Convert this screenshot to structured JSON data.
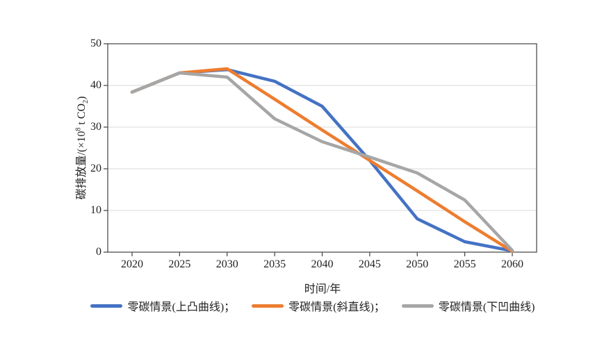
{
  "page": {
    "background": "#ffffff"
  },
  "chart_data": {
    "type": "line",
    "title": "",
    "x": [
      2020,
      2025,
      2030,
      2035,
      2040,
      2045,
      2050,
      2055,
      2060
    ],
    "xlabel": "时间/年",
    "ylabel": "碳排放量/(×10⁸ t CO₂)",
    "ylabel_parts": {
      "pre": "碳排放量/(×10",
      "sup": "8",
      "mid": " t CO",
      "sub": "2",
      "post": ")"
    },
    "ylim": [
      0,
      50
    ],
    "yticks": [
      0,
      10,
      20,
      30,
      40,
      50
    ],
    "grid": "horizontal gridlines at 10,20,30,40",
    "plot_border": "box",
    "legend_position": "bottom-center",
    "series": [
      {
        "name": "零碳情景(上凸曲线)",
        "legend_label": "零碳情景(上凸曲线)；",
        "color": "#4472C4",
        "values": [
          38.4,
          43.0,
          43.8,
          41.0,
          35.0,
          22.0,
          8.0,
          2.5,
          0.3
        ]
      },
      {
        "name": "零碳情景(斜直线)",
        "legend_label": "零碳情景(斜直线)；",
        "color": "#ED7D31",
        "values": [
          38.4,
          43.0,
          44.0,
          36.7,
          29.3,
          22.0,
          14.7,
          7.3,
          0.2
        ]
      },
      {
        "name": "零碳情景(下凹曲线)",
        "legend_label": "零碳情景(下凹曲线)",
        "color": "#A6A6A6",
        "values": [
          38.4,
          43.0,
          42.0,
          32.0,
          26.5,
          22.8,
          19.0,
          12.5,
          0.4
        ]
      }
    ],
    "colors": {
      "axis": "#404040",
      "grid": "#d9d9d9",
      "text": "#1f1f1f"
    }
  }
}
